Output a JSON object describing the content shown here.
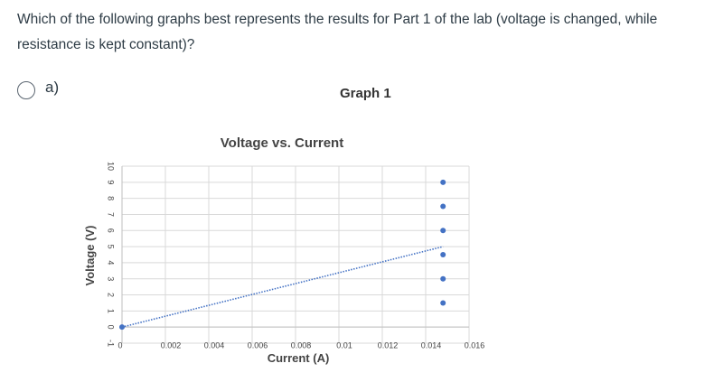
{
  "question": {
    "text": "Which of the following graphs best represents the results for Part 1 of the lab (voltage is changed, while resistance is kept constant)?"
  },
  "option": {
    "label": "a)",
    "graph_label": "Graph 1",
    "selected": false
  },
  "chart_data": {
    "type": "scatter",
    "title": "Voltage vs. Current",
    "xlabel": "Current (A)",
    "ylabel": "Voltage (V)",
    "xlim": [
      0,
      0.016
    ],
    "ylim": [
      -1,
      10
    ],
    "x_ticks": [
      "0",
      "0.002",
      "0.004",
      "0.006",
      "0.008",
      "0.01",
      "0.012",
      "0.014",
      "0.016"
    ],
    "y_ticks": [
      "-1",
      "0",
      "1",
      "2",
      "3",
      "4",
      "5",
      "6",
      "7",
      "8",
      "9",
      "10"
    ],
    "grid": true,
    "points": [
      {
        "x": 0,
        "y": 0
      },
      {
        "x": 0.0148,
        "y": 1.5
      },
      {
        "x": 0.0148,
        "y": 3
      },
      {
        "x": 0.0148,
        "y": 4.5
      },
      {
        "x": 0.0148,
        "y": 6
      },
      {
        "x": 0.0148,
        "y": 7.5
      },
      {
        "x": 0.0148,
        "y": 9
      }
    ],
    "trendline": {
      "x": [
        0,
        0.0148
      ],
      "y": [
        0,
        5
      ]
    },
    "colors": {
      "points": "#4472c4",
      "trendline": "#4472c4",
      "grid": "#d9d9d9"
    }
  }
}
